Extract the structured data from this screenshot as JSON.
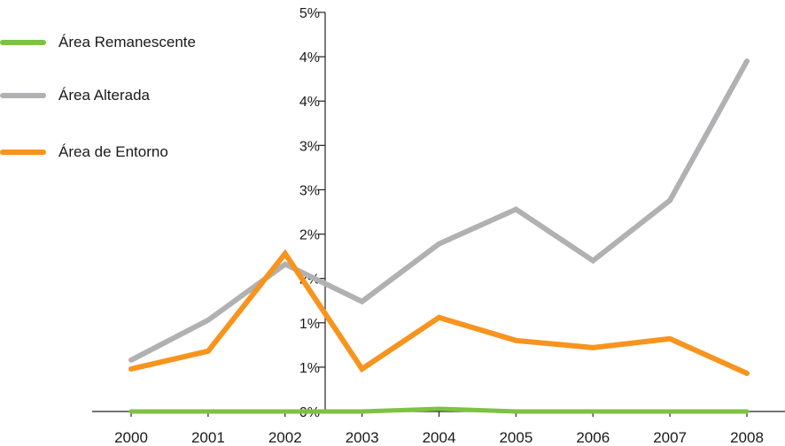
{
  "chart_data": {
    "type": "line",
    "categories": [
      "2000",
      "2001",
      "2002",
      "2003",
      "2004",
      "2005",
      "2006",
      "2007",
      "2008"
    ],
    "y_tick_labels": [
      "0%",
      "1%",
      "1%",
      "2%",
      "2%",
      "3%",
      "3%",
      "4%",
      "4%",
      "5%"
    ],
    "ylim": [
      0,
      4.5
    ],
    "title": "",
    "xlabel": "",
    "ylabel": "",
    "grid": false,
    "legend_position": "top-left",
    "series": [
      {
        "name": "Área Remanescente",
        "color": "#7dc242",
        "values": [
          0.0,
          0.0,
          0.0,
          0.0,
          0.03,
          0.0,
          0.0,
          0.0,
          0.0
        ]
      },
      {
        "name": "Área Alterada",
        "color": "#b1b1b3",
        "values": [
          0.58,
          1.03,
          1.66,
          1.24,
          1.89,
          2.28,
          1.7,
          2.38,
          3.95
        ]
      },
      {
        "name": "Área de Entorno",
        "color": "#f7941d",
        "values": [
          0.48,
          0.68,
          1.78,
          0.48,
          1.06,
          0.8,
          0.72,
          0.82,
          0.43
        ]
      }
    ]
  }
}
